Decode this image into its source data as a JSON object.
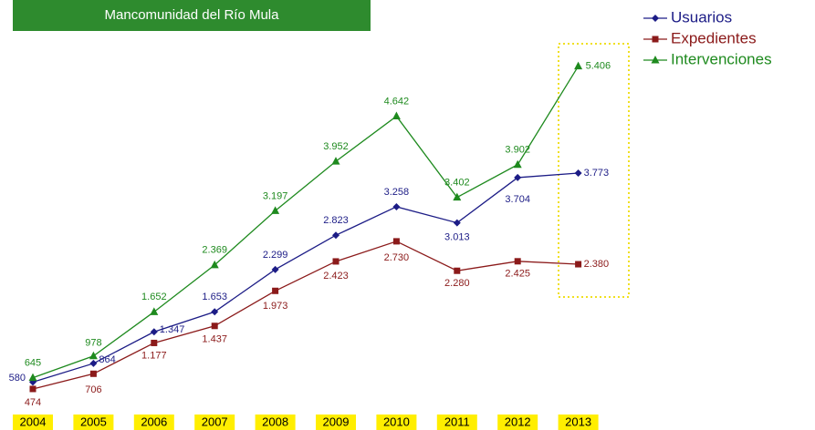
{
  "chart_data": {
    "type": "line",
    "title": "Mancomunidad del Río Mula",
    "categories": [
      "2004",
      "2005",
      "2006",
      "2007",
      "2008",
      "2009",
      "2010",
      "2011",
      "2012",
      "2013"
    ],
    "ylim": [
      0,
      6000
    ],
    "legend": "upper right",
    "series": [
      {
        "name": "Usuarios",
        "color": "#1c1c86",
        "marker": "diamond",
        "values": [
          580,
          864,
          1347,
          1653,
          2299,
          2823,
          3258,
          3013,
          3704,
          3773
        ],
        "value_labels": [
          "580",
          "864",
          "1.347",
          "1.653",
          "2.299",
          "2.823",
          "3.258",
          "3.013",
          "3.704",
          "3.773"
        ]
      },
      {
        "name": "Expedientes",
        "color": "#8b1a1a",
        "marker": "square",
        "values": [
          474,
          706,
          1177,
          1437,
          1973,
          2423,
          2730,
          2280,
          2425,
          2380
        ],
        "value_labels": [
          "474",
          "706",
          "1.177",
          "1.437",
          "1.973",
          "2.423",
          "2.730",
          "2.280",
          "2.425",
          "2.380"
        ]
      },
      {
        "name": "Intervenciones",
        "color": "#1e8a1e",
        "marker": "triangle",
        "values": [
          645,
          978,
          1652,
          2369,
          3197,
          3952,
          4642,
          3402,
          3902,
          5406
        ],
        "value_labels": [
          "645",
          "978",
          "1.652",
          "2.369",
          "3.197",
          "3.952",
          "4.642",
          "3.402",
          "3.902",
          "5.406"
        ]
      }
    ]
  }
}
